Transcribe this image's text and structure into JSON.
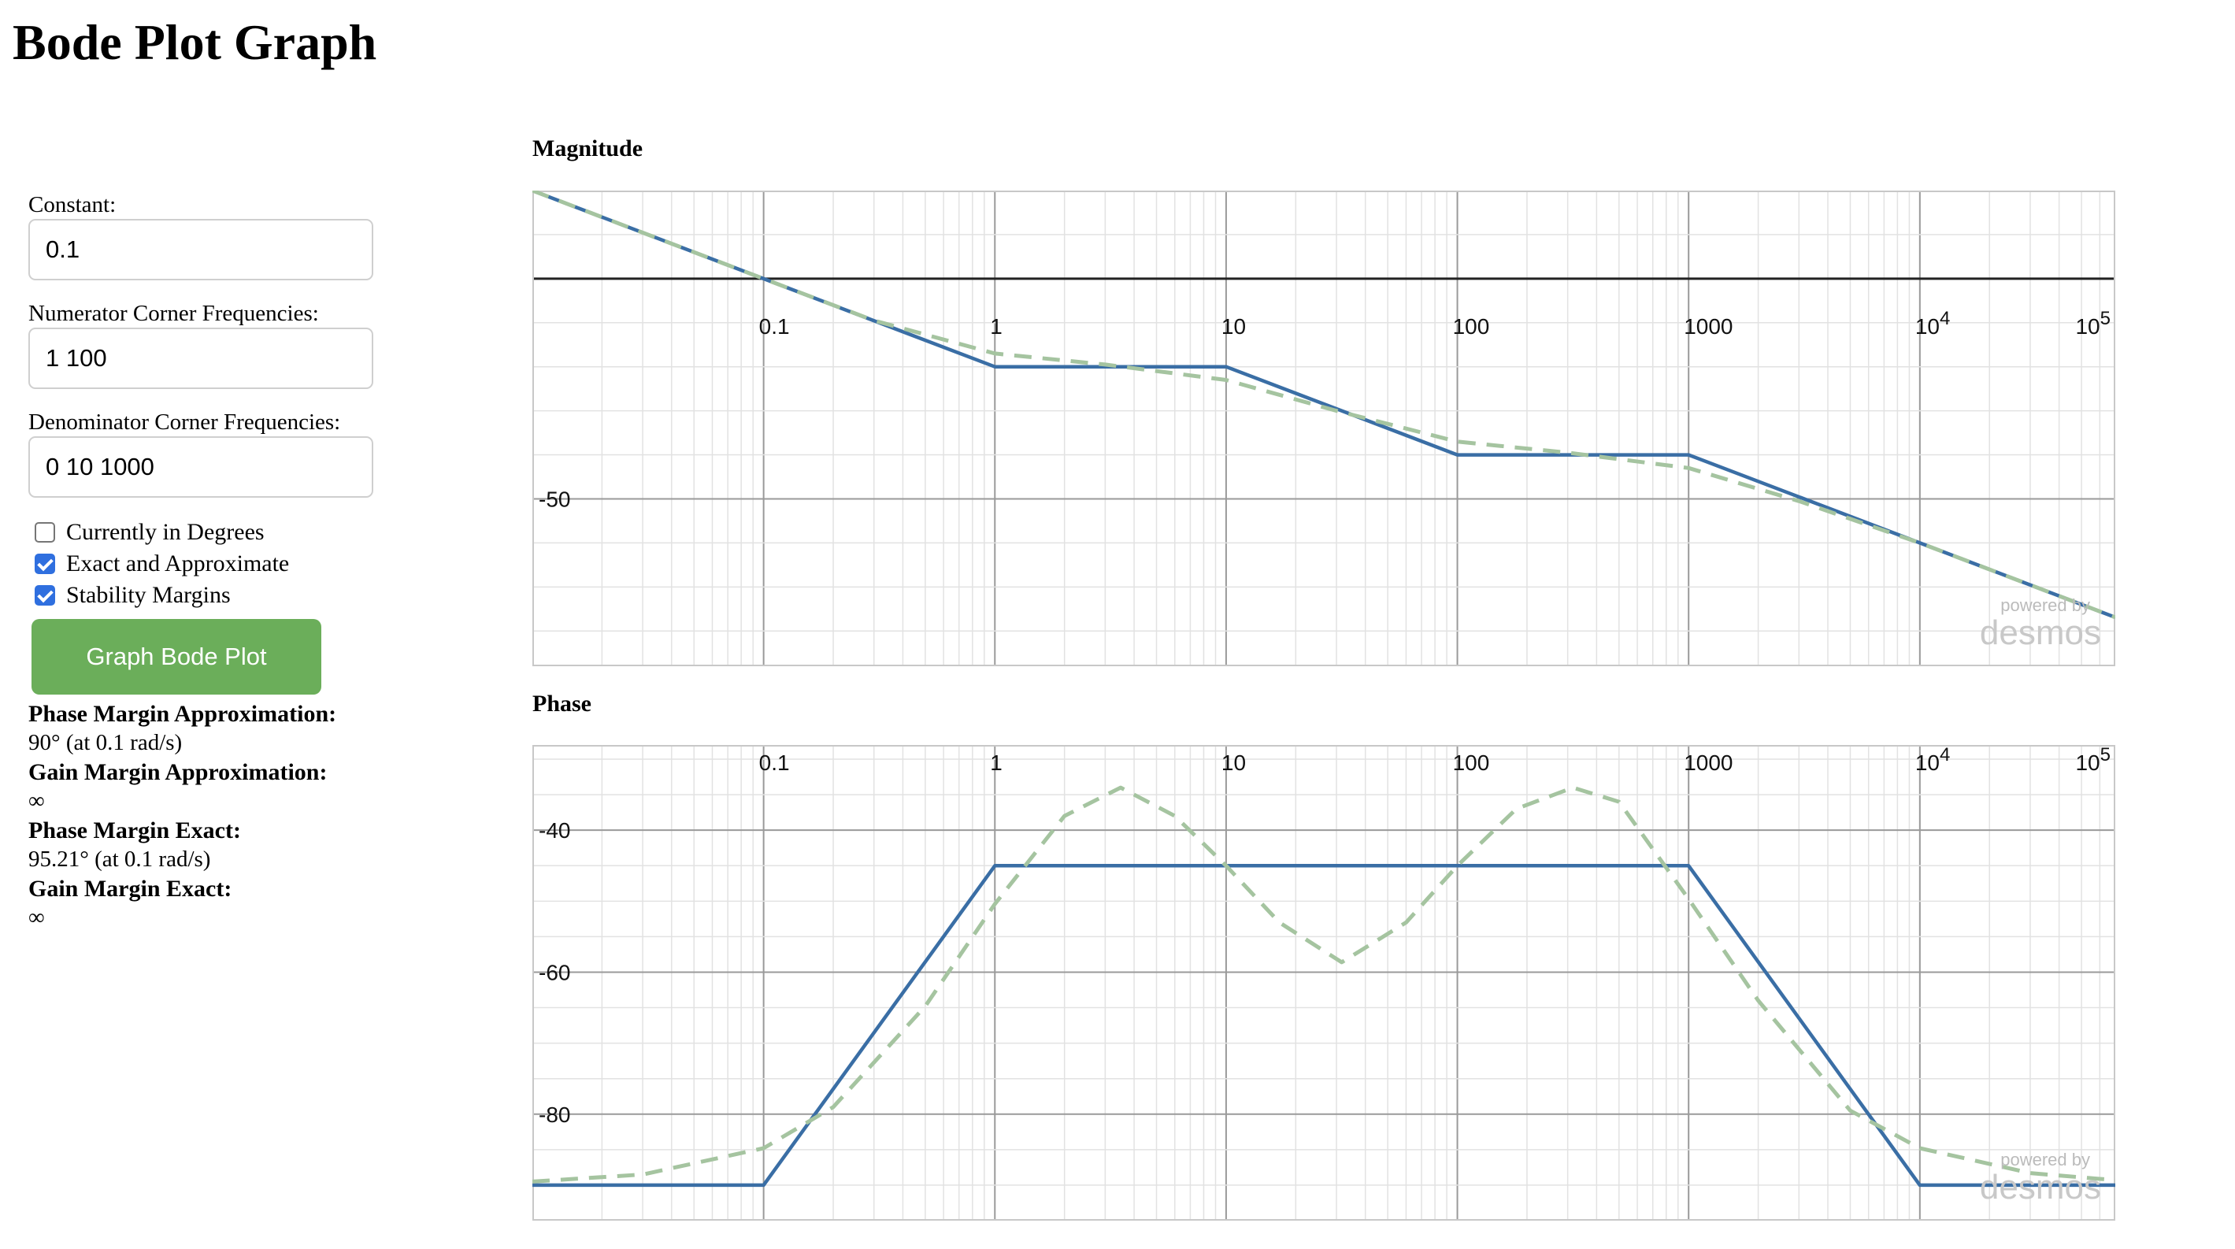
{
  "page": {
    "title": "Bode Plot Graph"
  },
  "form": {
    "constant_label": "Constant:",
    "constant_value": "0.1",
    "numerator_label": "Numerator Corner Frequencies:",
    "numerator_value": "1 100",
    "denominator_label": "Denominator Corner Frequencies:",
    "denominator_value": "0 10 1000",
    "checkboxes": [
      {
        "label": "Currently in Degrees",
        "checked": false
      },
      {
        "label": "Exact and Approximate",
        "checked": true
      },
      {
        "label": "Stability Margins",
        "checked": true
      }
    ],
    "graph_button_label": "Graph Bode Plot"
  },
  "results": {
    "phase_margin_approx_label": "Phase Margin Approximation:",
    "phase_margin_approx_value": "90° (at 0.1 rad/s)",
    "gain_margin_approx_label": "Gain Margin Approximation:",
    "gain_margin_approx_value": "∞",
    "phase_margin_exact_label": "Phase Margin Exact:",
    "phase_margin_exact_value": "95.21° (at 0.1 rad/s)",
    "gain_margin_exact_label": "Gain Margin Exact:",
    "gain_margin_exact_value": "∞"
  },
  "watermark": {
    "line1": "powered by",
    "line2": "desmos"
  },
  "colors": {
    "approx_line": "#3a6ea5",
    "exact_line": "#a5c4a0",
    "button": "#6bae5a",
    "checkbox_checked": "#2f6fdf"
  },
  "chart_data": [
    {
      "type": "line",
      "title": "Magnitude",
      "x_scale": "log",
      "xlim": [
        0.01,
        70000
      ],
      "ylim": [
        -88,
        20
      ],
      "x_tick_labels": [
        {
          "value": 0.1,
          "text": "0.1"
        },
        {
          "value": 1,
          "text": "1"
        },
        {
          "value": 10,
          "text": "10"
        },
        {
          "value": 100,
          "text": "100"
        },
        {
          "value": 1000,
          "text": "1000"
        },
        {
          "value": 10000,
          "base": "10",
          "exp": "4"
        },
        {
          "value": 100000,
          "base": "10",
          "exp": "5"
        }
      ],
      "y_tick_labels": [
        {
          "value": -50,
          "text": "-50"
        }
      ],
      "x_axis_at_y": 0,
      "grid": true,
      "series": [
        {
          "style": "solid",
          "x": [
            0.01,
            0.1,
            1,
            10,
            100,
            1000,
            70000
          ],
          "y": [
            20,
            0,
            -20,
            -20,
            -40,
            -40,
            -76.9
          ]
        },
        {
          "style": "dashed",
          "x": [
            0.01,
            0.1,
            0.3,
            1,
            3,
            10,
            30,
            100,
            300,
            1000,
            3000,
            10000,
            70000
          ],
          "y": [
            20,
            0,
            -9.5,
            -17,
            -19.5,
            -23,
            -30,
            -37,
            -39.5,
            -43,
            -50.5,
            -60,
            -76.9
          ]
        }
      ]
    },
    {
      "type": "line",
      "title": "Phase",
      "x_scale": "log",
      "xlim": [
        0.01,
        70000
      ],
      "ylim": [
        -95,
        -28
      ],
      "x_tick_labels": [
        {
          "value": 0.1,
          "text": "0.1"
        },
        {
          "value": 1,
          "text": "1"
        },
        {
          "value": 10,
          "text": "10"
        },
        {
          "value": 100,
          "text": "100"
        },
        {
          "value": 1000,
          "text": "1000"
        },
        {
          "value": 10000,
          "base": "10",
          "exp": "4"
        },
        {
          "value": 100000,
          "base": "10",
          "exp": "5"
        }
      ],
      "y_tick_labels": [
        {
          "value": -40,
          "text": "-40"
        },
        {
          "value": -60,
          "text": "-60"
        },
        {
          "value": -80,
          "text": "-80"
        }
      ],
      "grid": true,
      "series": [
        {
          "style": "solid",
          "x": [
            0.01,
            0.1,
            1,
            1000,
            10000,
            70000
          ],
          "y": [
            -90,
            -90,
            -45,
            -45,
            -90,
            -90
          ]
        },
        {
          "style": "dashed",
          "x": [
            0.01,
            0.03,
            0.1,
            0.2,
            0.5,
            1,
            2,
            3.5,
            6,
            10,
            17,
            31.6,
            60,
            100,
            180,
            316,
            500,
            1000,
            2000,
            5000,
            10000,
            30000,
            70000
          ],
          "y": [
            -89.5,
            -88.5,
            -84.8,
            -79,
            -64.8,
            -50.4,
            -38,
            -34,
            -38,
            -45,
            -53,
            -58.6,
            -53,
            -45,
            -37,
            -34,
            -36,
            -49.7,
            -64,
            -79.5,
            -84.8,
            -88.3,
            -89.3
          ]
        }
      ]
    }
  ]
}
